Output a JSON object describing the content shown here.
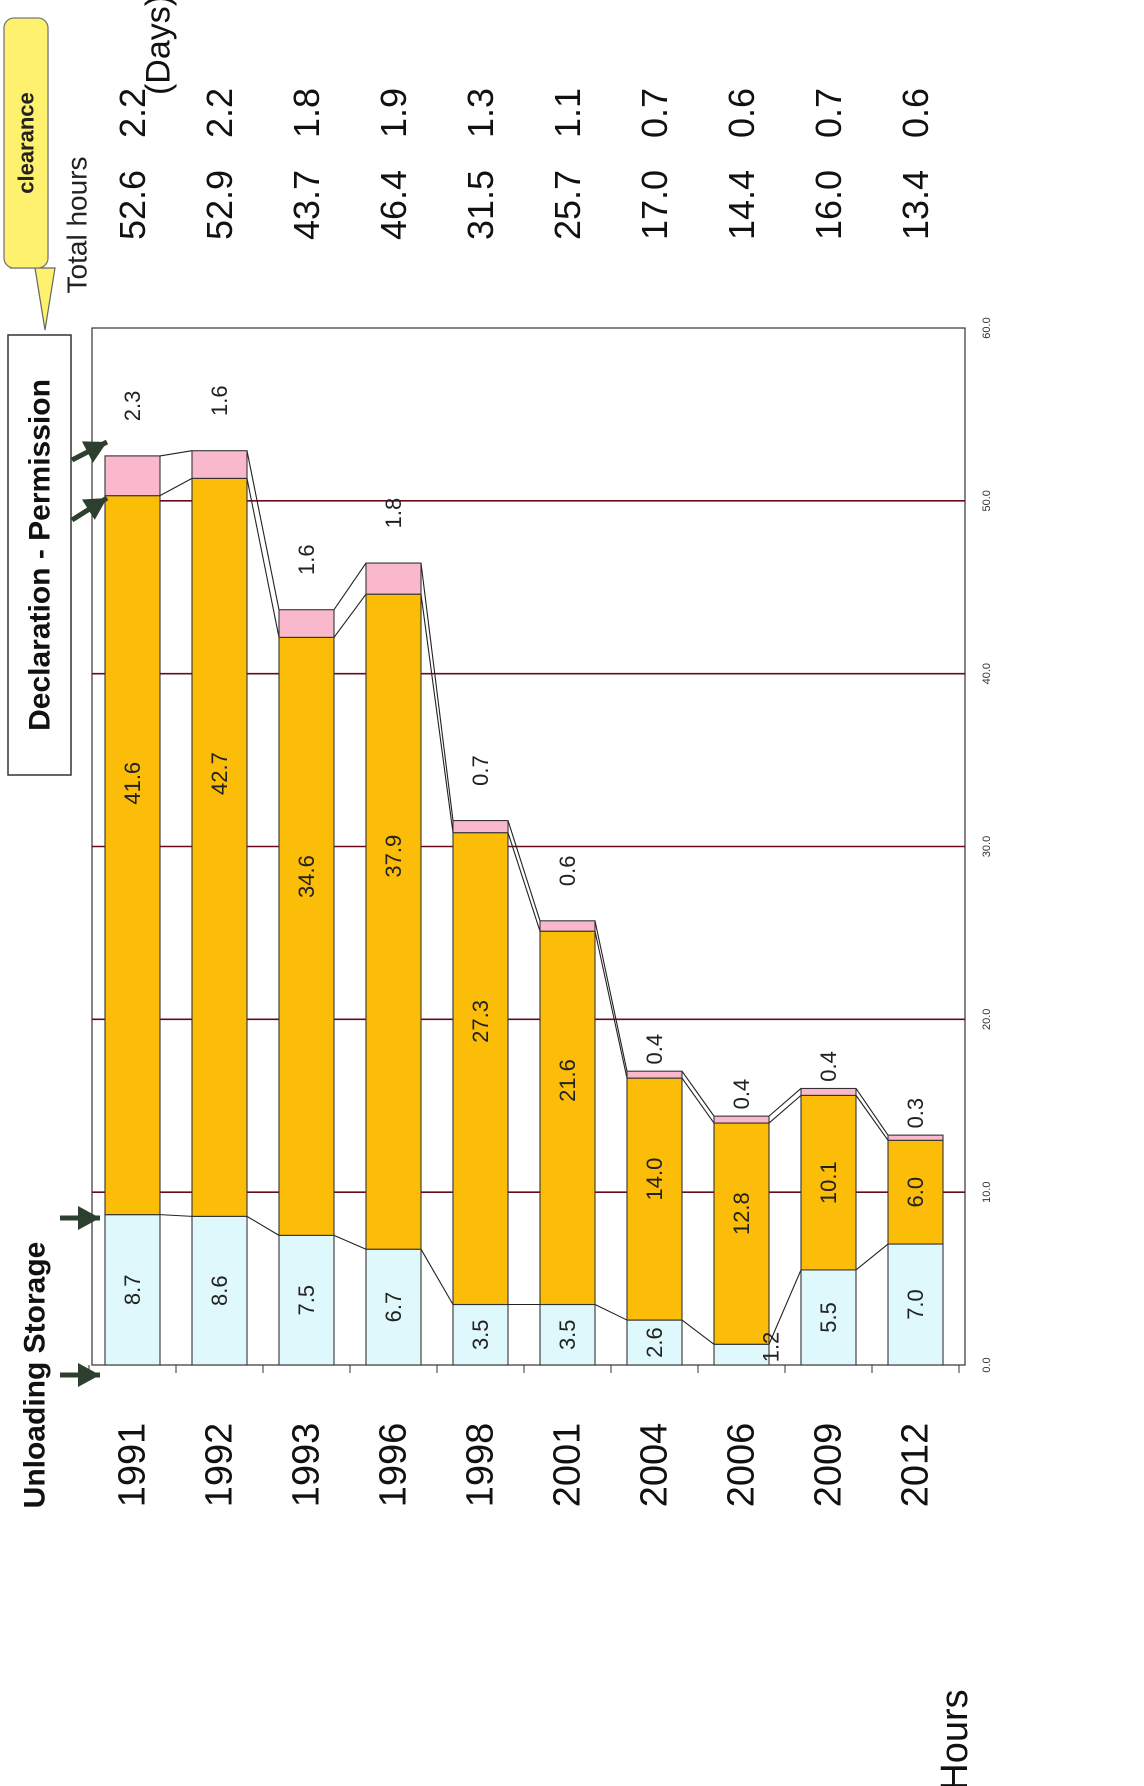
{
  "annotations": {
    "storage_phase": "Unloading  Storage",
    "declaration_phase": "Declaration - Permission",
    "callout": "clearance",
    "total_hours_header": "Total hours",
    "days_unit": "(Days)",
    "axis_unit": "Hours"
  },
  "colors": {
    "unloading_storage": "#dff8fc",
    "declaration_permission": "#fbbd08",
    "clearance": "#f9b8cc",
    "grid": "#6a0a1a",
    "callout": "#fdf16e"
  },
  "chart_data": {
    "type": "bar",
    "orientation": "horizontal",
    "stacked": true,
    "title": "",
    "xlabel": "Hours",
    "ylabel": "",
    "xlim": [
      0,
      60
    ],
    "ticks": [
      "0.0",
      "10.0",
      "20.0",
      "30.0",
      "40.0",
      "50.0",
      "60.0"
    ],
    "grid": true,
    "categories": [
      "1991",
      "1992",
      "1993",
      "1996",
      "1998",
      "2001",
      "2004",
      "2006",
      "2009",
      "2012"
    ],
    "series": [
      {
        "name": "Unloading  Storage",
        "values": [
          8.7,
          8.6,
          7.5,
          6.7,
          3.5,
          3.5,
          2.6,
          1.2,
          5.5,
          7.0
        ]
      },
      {
        "name": "Declaration - Permission",
        "values": [
          41.6,
          42.7,
          34.6,
          37.9,
          27.3,
          21.6,
          14.0,
          12.8,
          10.1,
          6.0
        ]
      },
      {
        "name": "clearance",
        "values": [
          2.3,
          1.6,
          1.6,
          1.8,
          0.7,
          0.6,
          0.4,
          0.4,
          0.4,
          0.3
        ]
      }
    ],
    "bar_labels": [
      [
        "8.7",
        "8.6",
        "7.5",
        "6.7",
        "3.5",
        "3.5",
        "2.6",
        "1.2",
        "5.5",
        "7.0"
      ],
      [
        "41.6",
        "42.7",
        "34.6",
        "37.9",
        "27.3",
        "21.6",
        "14.0",
        "12.8",
        "10.1",
        "6.0"
      ],
      [
        "2.3",
        "1.6",
        "1.6",
        "1.8",
        "0.7",
        "0.6",
        "0.4",
        "0.4",
        "0.4",
        "0.3"
      ]
    ],
    "total_hours": [
      "52.6",
      "52.9",
      "43.7",
      "46.4",
      "31.5",
      "25.7",
      "17.0",
      "14.4",
      "16.0",
      "13.4"
    ],
    "total_days": [
      "2.2",
      "2.2",
      "1.8",
      "1.9",
      "1.3",
      "1.1",
      "0.7",
      "0.6",
      "0.7",
      "0.6"
    ]
  }
}
